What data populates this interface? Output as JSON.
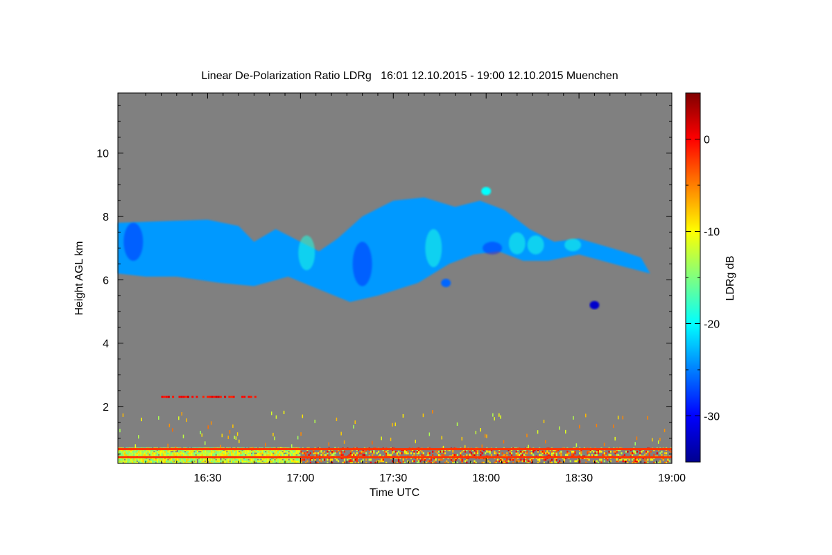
{
  "chart_data": {
    "type": "heatmap",
    "title": "Linear De-Polarization Ratio LDRg   16:01 12.10.2015 - 19:00 12.10.2015 Muenchen",
    "xlabel": "Time UTC",
    "ylabel": "Height AGL km",
    "colorbar_label": "LDRg dB",
    "xlim": [
      "16:01",
      "19:00"
    ],
    "ylim": [
      0.2,
      11.9
    ],
    "x_ticks": [
      "16:30",
      "17:00",
      "17:30",
      "18:00",
      "18:30",
      "19:00"
    ],
    "y_ticks": [
      2,
      4,
      6,
      8,
      10
    ],
    "clim": [
      -35,
      5
    ],
    "colorbar_ticks": [
      0,
      -10,
      -20,
      -30
    ],
    "background_color": "#808080",
    "colormap": "jet",
    "features": [
      {
        "name": "cirrus layer",
        "time_start": "16:01",
        "time_end": "18:55",
        "height_bottom_km": 5.3,
        "height_top_km": 8.6,
        "ldr_db": -24
      },
      {
        "name": "elevated aerosol line",
        "time_start": "16:15",
        "time_end": "16:50",
        "height_km": 2.3,
        "ldr_db": 0
      },
      {
        "name": "boundary layer",
        "time_start": "16:01",
        "time_end": "19:00",
        "height_bottom_km": 0.2,
        "height_top_km": 0.7,
        "ldr_db": -10
      },
      {
        "name": "artifact line upper",
        "time_start": "16:01",
        "time_end": "19:00",
        "height_km": 0.65,
        "ldr_db": 0
      },
      {
        "name": "artifact line lower",
        "time_start": "16:01",
        "time_end": "19:00",
        "height_km": 0.4,
        "ldr_db": 0
      }
    ]
  }
}
